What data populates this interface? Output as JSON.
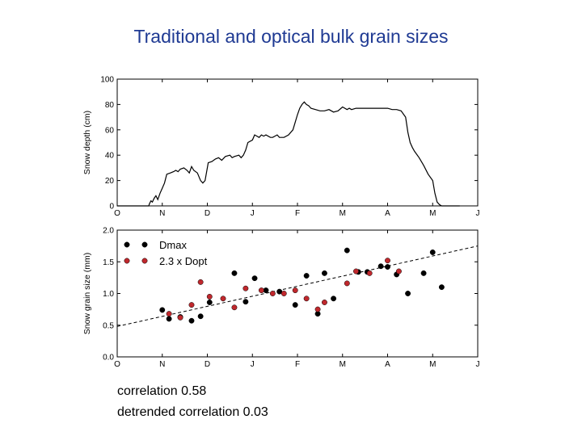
{
  "title": "Traditional and optical bulk grain sizes",
  "stats": {
    "correlation": "correlation 0.58",
    "detrended": "detrended correlation 0.03"
  },
  "chart_data": [
    {
      "type": "line",
      "ylabel": "Snow depth (cm)",
      "xlabel": "",
      "ylim": [
        0,
        100
      ],
      "yticks": [
        0,
        20,
        40,
        60,
        80,
        100
      ],
      "xlim": [
        0,
        8
      ],
      "xticks": [
        0,
        1,
        2,
        3,
        4,
        5,
        6,
        7,
        8
      ],
      "xtick_labels": [
        "O",
        "N",
        "D",
        "J",
        "F",
        "M",
        "A",
        "M",
        "J"
      ],
      "grid": false,
      "series": [
        {
          "color": "#000000",
          "x": [
            0,
            0.7,
            0.72,
            0.75,
            0.78,
            0.82,
            0.86,
            0.9,
            0.95,
            1.0,
            1.05,
            1.1,
            1.18,
            1.25,
            1.3,
            1.35,
            1.4,
            1.48,
            1.55,
            1.6,
            1.65,
            1.7,
            1.78,
            1.85,
            1.9,
            1.95,
            2.02,
            2.1,
            2.18,
            2.25,
            2.32,
            2.4,
            2.5,
            2.55,
            2.6,
            2.7,
            2.75,
            2.8,
            2.85,
            2.9,
            3.0,
            3.05,
            3.1,
            3.15,
            3.2,
            3.25,
            3.3,
            3.4,
            3.45,
            3.5,
            3.55,
            3.6,
            3.7,
            3.8,
            3.9,
            3.95,
            4.0,
            4.05,
            4.1,
            4.15,
            4.2,
            4.25,
            4.3,
            4.4,
            4.5,
            4.6,
            4.7,
            4.8,
            4.9,
            5.0,
            5.1,
            5.15,
            5.2,
            5.3,
            5.5,
            5.7,
            5.9,
            6.0,
            6.1,
            6.2,
            6.3,
            6.4,
            6.45,
            6.5,
            6.55,
            6.6,
            6.7,
            6.8,
            6.9,
            7.0,
            7.05,
            7.1,
            7.15,
            7.2,
            7.3,
            7.5,
            7.6
          ],
          "y": [
            0,
            0,
            2,
            4,
            3,
            6,
            8,
            5,
            10,
            14,
            18,
            25,
            26,
            27,
            28,
            27,
            29,
            30,
            28,
            26,
            31,
            28,
            26,
            20,
            18,
            20,
            34,
            35,
            37,
            38,
            36,
            39,
            40,
            38,
            39,
            40,
            38,
            40,
            44,
            50,
            52,
            56,
            55,
            54,
            56,
            55,
            56,
            54,
            54,
            55,
            56,
            54,
            54,
            56,
            60,
            66,
            72,
            77,
            80,
            82,
            80,
            79,
            77,
            76,
            75,
            75,
            76,
            74,
            75,
            78,
            76,
            77,
            76,
            77,
            77,
            77,
            77,
            77,
            76,
            76,
            75,
            70,
            58,
            50,
            46,
            43,
            38,
            32,
            25,
            20,
            10,
            3,
            1,
            0,
            0,
            0,
            0
          ]
        }
      ]
    },
    {
      "type": "scatter",
      "ylabel": "Snow grain size (mm)",
      "xlabel": "",
      "ylim": [
        0,
        2
      ],
      "yticks": [
        0.0,
        0.5,
        1.0,
        1.5,
        2.0
      ],
      "ytick_labels": [
        "0.0",
        "0.5",
        "1.0",
        "1.5",
        "2.0"
      ],
      "xlim": [
        0,
        8
      ],
      "xticks": [
        0,
        1,
        2,
        3,
        4,
        5,
        6,
        7,
        8
      ],
      "xtick_labels": [
        "O",
        "N",
        "D",
        "J",
        "F",
        "M",
        "A",
        "M",
        "J"
      ],
      "grid": false,
      "legend": "top-left",
      "series": [
        {
          "name": "Dmax",
          "color": "#000000",
          "x": [
            1.0,
            1.15,
            1.4,
            1.65,
            1.85,
            2.05,
            2.6,
            2.85,
            3.05,
            3.3,
            3.6,
            3.95,
            4.2,
            4.45,
            4.6,
            4.8,
            5.1,
            5.35,
            5.55,
            5.85,
            6.0,
            6.2,
            6.45,
            6.8,
            7.0,
            7.2
          ],
          "y": [
            0.74,
            0.6,
            0.63,
            0.57,
            0.64,
            0.86,
            1.32,
            0.87,
            1.24,
            1.05,
            1.03,
            0.82,
            1.28,
            0.68,
            1.32,
            0.92,
            1.68,
            1.34,
            1.34,
            1.43,
            1.42,
            1.3,
            1.0,
            1.32,
            1.65,
            1.1
          ]
        },
        {
          "name": "2.3 x Dopt",
          "color": "#c0282d",
          "x": [
            1.15,
            1.4,
            1.65,
            1.85,
            2.05,
            2.35,
            2.6,
            2.85,
            3.2,
            3.45,
            3.7,
            3.95,
            4.2,
            4.45,
            4.6,
            5.1,
            5.3,
            5.6,
            6.0,
            6.25
          ],
          "y": [
            0.68,
            0.62,
            0.82,
            1.18,
            0.95,
            0.92,
            0.78,
            1.08,
            1.05,
            1.0,
            1.0,
            1.05,
            0.92,
            0.75,
            0.86,
            1.16,
            1.35,
            1.32,
            1.52,
            1.35
          ]
        }
      ],
      "trendline": {
        "style": "dashed",
        "x": [
          0,
          8
        ],
        "y": [
          0.48,
          1.75
        ]
      }
    }
  ]
}
